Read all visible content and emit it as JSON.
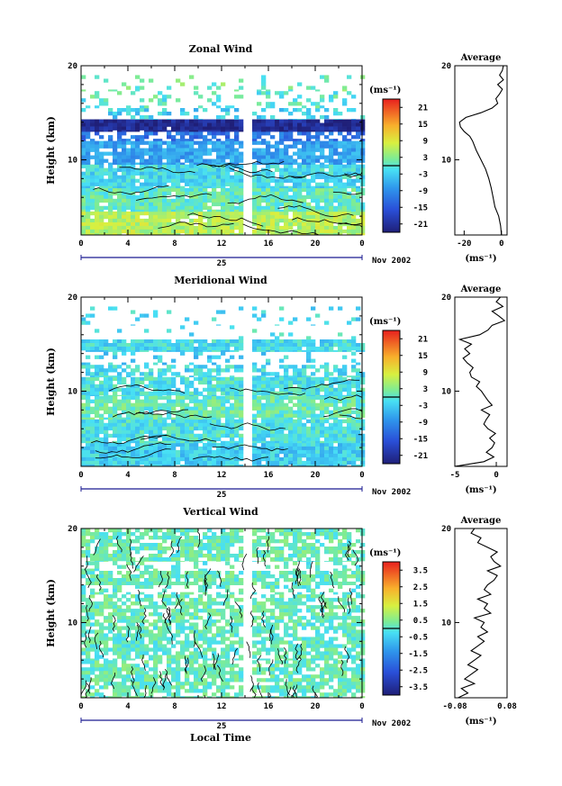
{
  "chart_data": [
    {
      "type": "heatmap",
      "title": "Zonal Wind",
      "ylabel": "Height (km)",
      "ylim": [
        2,
        20
      ],
      "y_ticks": [
        "10",
        "20"
      ],
      "x_ticks": [
        "0",
        "4",
        "8",
        "12",
        "16",
        "20",
        "0"
      ],
      "xlim": [
        0,
        24
      ],
      "date_day": "25",
      "date_label": "Nov 2002",
      "colorbar_unit": "(ms⁻¹)",
      "colorbar_ticks": [
        "21",
        "15",
        "9",
        "3",
        "-3",
        "-9",
        "-15",
        "-21"
      ],
      "colorbar_range": [
        -24,
        24
      ],
      "data_gap_hours": [
        13.7,
        14.4
      ],
      "layers": [
        {
          "y0": 2.0,
          "y1": 4.5,
          "value": 6,
          "cover": 0.95
        },
        {
          "y0": 4.5,
          "y1": 7.0,
          "value": 1,
          "cover": 0.93
        },
        {
          "y0": 7.0,
          "y1": 9.5,
          "value": -2,
          "cover": 0.9
        },
        {
          "y0": 9.5,
          "y1": 12.0,
          "value": -7,
          "cover": 0.85
        },
        {
          "y0": 12.0,
          "y1": 13.0,
          "value": -12,
          "cover": 0.6
        },
        {
          "y0": 13.0,
          "y1": 14.3,
          "value": -22,
          "cover": 0.97
        },
        {
          "y0": 14.3,
          "y1": 15.5,
          "value": -3,
          "cover": 0.3
        },
        {
          "y0": 15.5,
          "y1": 17.3,
          "value": 0,
          "cover": 0.25
        },
        {
          "y0": 17.3,
          "y1": 19.0,
          "value": 2,
          "cover": 0.15
        }
      ],
      "average_profile": {
        "title": "Average",
        "xlabel": "(ms⁻¹)",
        "x_ticks": [
          "-20",
          "0"
        ],
        "xlim": [
          -25,
          3
        ],
        "y_ticks": [
          "10",
          "20"
        ],
        "height_km": [
          2,
          3,
          4,
          5,
          6,
          7,
          8,
          9,
          10,
          11,
          12,
          12.5,
          13,
          13.5,
          14,
          14.5,
          15,
          15.5,
          16,
          16.5,
          17,
          17.5,
          18,
          18.5,
          19,
          19.5,
          20
        ],
        "values": [
          0.0,
          -0.5,
          -1.5,
          -3.5,
          -4.5,
          -5.5,
          -6.8,
          -8.5,
          -11.0,
          -13.5,
          -15.5,
          -17.0,
          -20.0,
          -22.0,
          -22.5,
          -19.0,
          -11.0,
          -5.0,
          -2.0,
          -3.0,
          -1.0,
          0.5,
          -2.0,
          1.0,
          -1.0,
          0.5,
          1.0
        ]
      }
    },
    {
      "type": "heatmap",
      "title": "Meridional Wind",
      "ylabel": "Height (km)",
      "ylim": [
        2,
        20
      ],
      "y_ticks": [
        "10",
        "20"
      ],
      "x_ticks": [
        "0",
        "4",
        "8",
        "12",
        "16",
        "20",
        "0"
      ],
      "xlim": [
        0,
        24
      ],
      "date_day": "25",
      "date_label": "Nov 2002",
      "colorbar_unit": "(ms⁻¹)",
      "colorbar_ticks": [
        "21",
        "15",
        "9",
        "3",
        "-3",
        "-9",
        "-15",
        "-21"
      ],
      "colorbar_range": [
        -24,
        24
      ],
      "data_gap_hours": [
        13.7,
        14.4
      ],
      "layers": [
        {
          "y0": 2.0,
          "y1": 4.5,
          "value": -3,
          "cover": 0.95
        },
        {
          "y0": 4.5,
          "y1": 7.0,
          "value": -1,
          "cover": 0.92
        },
        {
          "y0": 7.0,
          "y1": 9.5,
          "value": 1,
          "cover": 0.9
        },
        {
          "y0": 9.5,
          "y1": 11.5,
          "value": -1,
          "cover": 0.85
        },
        {
          "y0": 11.5,
          "y1": 12.8,
          "value": -2,
          "cover": 0.6
        },
        {
          "y0": 12.8,
          "y1": 14.2,
          "value": -3,
          "cover": 0.2
        },
        {
          "y0": 14.2,
          "y1": 15.5,
          "value": -2,
          "cover": 0.95
        },
        {
          "y0": 15.5,
          "y1": 17.0,
          "value": -1,
          "cover": 0.08
        },
        {
          "y0": 17.0,
          "y1": 19.0,
          "value": -2,
          "cover": 0.12
        }
      ],
      "average_profile": {
        "title": "Average",
        "xlabel": "(ms⁻¹)",
        "x_ticks": [
          "-5",
          "0"
        ],
        "xlim": [
          -5,
          1.3
        ],
        "y_ticks": [
          "10",
          "20"
        ],
        "height_km": [
          2,
          2.5,
          3,
          3.5,
          4,
          4.5,
          5,
          5.5,
          6,
          6.5,
          7,
          7.5,
          8,
          8.5,
          9,
          9.5,
          10,
          10.5,
          11,
          11.5,
          12,
          12.5,
          13,
          13.5,
          14,
          14.5,
          15,
          15.5,
          16,
          16.5,
          17,
          17.5,
          18,
          18.5,
          19,
          19.5,
          20
        ],
        "values": [
          -5.0,
          -1.5,
          -0.3,
          -1.2,
          -0.5,
          -0.2,
          -0.8,
          -0.1,
          -1.0,
          -1.5,
          -1.2,
          -0.8,
          -1.8,
          -0.5,
          -1.0,
          -1.4,
          -1.8,
          -2.4,
          -2.0,
          -3.0,
          -3.2,
          -2.8,
          -3.5,
          -4.0,
          -3.2,
          -3.8,
          -3.0,
          -4.4,
          -2.0,
          -1.0,
          -0.5,
          1.0,
          0.3,
          -0.5,
          0.8,
          0.0,
          0.5
        ]
      }
    },
    {
      "type": "heatmap",
      "title": "Vertical Wind",
      "ylabel": "Height (km)",
      "xlabel": "Local Time",
      "ylim": [
        2,
        20
      ],
      "y_ticks": [
        "10",
        "20"
      ],
      "x_ticks": [
        "0",
        "4",
        "8",
        "12",
        "16",
        "20",
        "0"
      ],
      "xlim": [
        0,
        24
      ],
      "date_day": "25",
      "date_label": "Nov 2002",
      "colorbar_unit": "(ms⁻¹)",
      "colorbar_ticks": [
        "3.5",
        "2.5",
        "1.5",
        "0.5",
        "-0.5",
        "-1.5",
        "-2.5",
        "-3.5"
      ],
      "colorbar_range": [
        -4,
        4
      ],
      "data_gap_hours": [
        13.7,
        14.4
      ],
      "layers": [
        {
          "y0": 2.0,
          "y1": 6.0,
          "value": 0.2,
          "cover": 0.72
        },
        {
          "y0": 6.0,
          "y1": 10.0,
          "value": 0.1,
          "cover": 0.7
        },
        {
          "y0": 10.0,
          "y1": 13.0,
          "value": 0.2,
          "cover": 0.68
        },
        {
          "y0": 13.0,
          "y1": 14.0,
          "value": 0.1,
          "cover": 0.35
        },
        {
          "y0": 14.0,
          "y1": 15.5,
          "value": 0.2,
          "cover": 0.85
        },
        {
          "y0": 15.5,
          "y1": 16.5,
          "value": 0.1,
          "cover": 0.3
        },
        {
          "y0": 16.5,
          "y1": 20.0,
          "value": 0.2,
          "cover": 0.75
        }
      ],
      "average_profile": {
        "title": "Average",
        "xlabel": "(ms⁻¹)",
        "x_ticks": [
          "-0.08",
          "0.08"
        ],
        "xlim": [
          -0.08,
          0.08
        ],
        "y_ticks": [
          "10",
          "20"
        ],
        "height_km": [
          2,
          2.5,
          3,
          3.5,
          4,
          4.5,
          5,
          5.5,
          6,
          6.5,
          7,
          7.5,
          8,
          8.5,
          9,
          9.5,
          10,
          10.5,
          11,
          11.5,
          12,
          12.5,
          13,
          13.5,
          14,
          14.5,
          15,
          15.5,
          16,
          16.5,
          17,
          17.5,
          18,
          18.5,
          19,
          19.5,
          20
        ],
        "values": [
          -0.07,
          -0.04,
          -0.06,
          -0.02,
          -0.05,
          -0.03,
          -0.01,
          -0.04,
          -0.02,
          0.0,
          -0.03,
          -0.01,
          0.01,
          -0.01,
          0.02,
          0.0,
          0.01,
          -0.02,
          0.03,
          0.01,
          0.02,
          -0.01,
          0.03,
          0.01,
          0.02,
          0.04,
          0.05,
          0.02,
          0.06,
          0.04,
          0.03,
          0.05,
          0.02,
          -0.01,
          0.0,
          -0.03,
          -0.02
        ]
      }
    }
  ]
}
